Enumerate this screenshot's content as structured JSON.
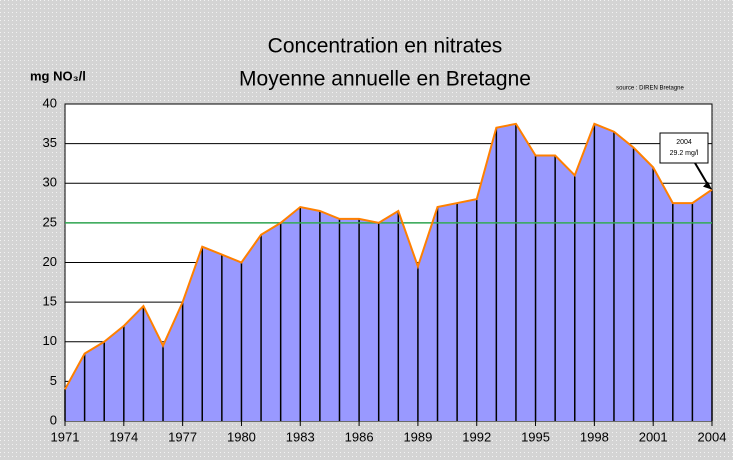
{
  "chart_data": {
    "type": "area",
    "title": "Concentration en nitrates",
    "subtitle": "Moyenne annuelle en Bretagne",
    "y_label": "mg NO₃/l",
    "source": "source : DIREN Bretagne",
    "annotation": [
      "2004",
      "29.2 mg/l"
    ],
    "x": [
      1971,
      1972,
      1973,
      1974,
      1975,
      1976,
      1977,
      1978,
      1979,
      1980,
      1981,
      1982,
      1983,
      1984,
      1985,
      1986,
      1987,
      1988,
      1989,
      1990,
      1991,
      1992,
      1993,
      1994,
      1995,
      1996,
      1997,
      1998,
      1999,
      2000,
      2001,
      2002,
      2003,
      2004
    ],
    "values": [
      4,
      8.5,
      10,
      12,
      14.5,
      9.5,
      15,
      22,
      21,
      20,
      23.5,
      25,
      27,
      26.5,
      25.5,
      25.5,
      25,
      26.5,
      19.5,
      27,
      27.5,
      28,
      37,
      37.5,
      33.5,
      33.5,
      31,
      37.5,
      36.5,
      34.5,
      32,
      27.5,
      27.5,
      29.2
    ],
    "color": "#9999ff",
    "line_color": "#ff8000",
    "reference_line": 25,
    "reference_color": "#33aa55",
    "xlim": [
      1971,
      2004
    ],
    "xticks": [
      1971,
      1974,
      1977,
      1980,
      1983,
      1986,
      1989,
      1992,
      1995,
      1998,
      2001,
      2004
    ],
    "ylim": [
      0,
      40
    ],
    "yticks": [
      0,
      5,
      10,
      15,
      20,
      25,
      30,
      35,
      40
    ],
    "grid": true
  }
}
